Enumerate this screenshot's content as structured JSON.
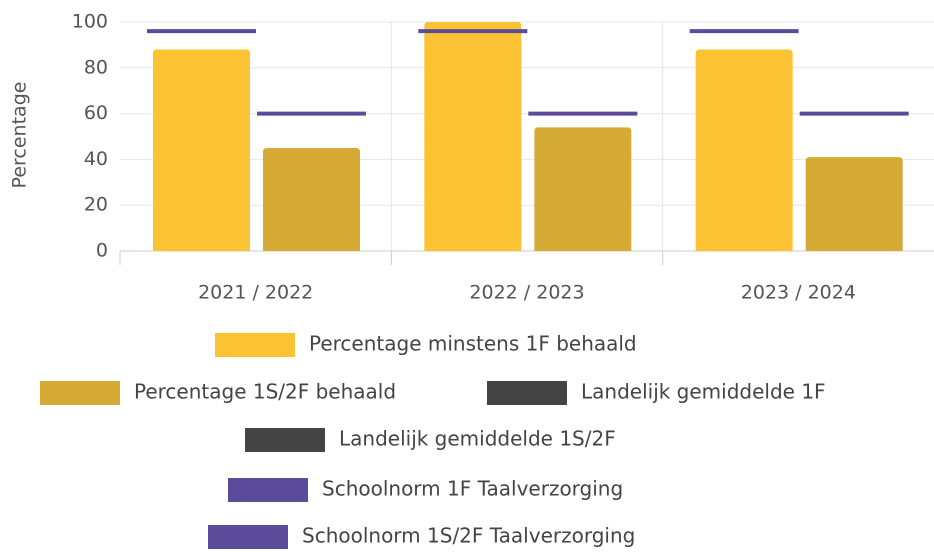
{
  "chart_data": {
    "type": "bar",
    "y_label": "Percentage",
    "categories": [
      "2021 / 2022",
      "2022 / 2023",
      "2023 / 2024"
    ],
    "ylim": [
      0,
      100
    ],
    "yticks": [
      0,
      20,
      40,
      60,
      80,
      100
    ],
    "grid": true,
    "series": [
      {
        "name": "Percentage minstens 1F behaald",
        "type": "bar",
        "color": "#fbc334",
        "values": [
          88,
          100,
          88
        ]
      },
      {
        "name": "Percentage 1S/2F behaald",
        "type": "bar",
        "color": "#d6ab35",
        "values": [
          45,
          54,
          41
        ]
      },
      {
        "name": "Landelijk gemiddelde 1F",
        "type": "line",
        "color": "#444444",
        "values": [
          null,
          null,
          null
        ]
      },
      {
        "name": "Landelijk gemiddelde 1S/2F",
        "type": "line",
        "color": "#444444",
        "values": [
          null,
          null,
          null
        ]
      },
      {
        "name": "Schoolnorm 1F Taalverzorging",
        "type": "line",
        "color": "#5c4b9b",
        "values": [
          96,
          96,
          96
        ]
      },
      {
        "name": "Schoolnorm 1S/2F Taalverzorging",
        "type": "line",
        "color": "#5c4b9b",
        "values": [
          60,
          60,
          60
        ]
      }
    ]
  }
}
